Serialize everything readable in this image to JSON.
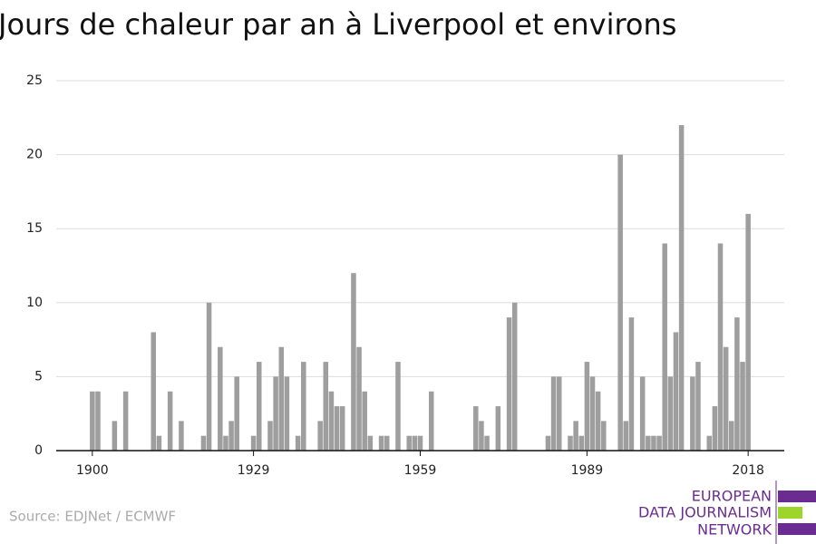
{
  "chart_data": {
    "type": "bar",
    "title": "Jours de chaleur par an à Liverpool et environs",
    "source": "Source: EDJNet / ECMWF",
    "logo": [
      "EUROPEAN",
      "DATA JOURNALISM",
      "NETWORK"
    ],
    "color": "#9e9e9e",
    "x": [
      1900,
      1901,
      1902,
      1903,
      1904,
      1905,
      1906,
      1907,
      1908,
      1909,
      1910,
      1911,
      1912,
      1913,
      1914,
      1915,
      1916,
      1917,
      1918,
      1919,
      1920,
      1921,
      1922,
      1923,
      1924,
      1925,
      1926,
      1927,
      1928,
      1929,
      1930,
      1931,
      1932,
      1933,
      1934,
      1935,
      1936,
      1937,
      1938,
      1939,
      1940,
      1941,
      1942,
      1943,
      1944,
      1945,
      1946,
      1947,
      1948,
      1949,
      1950,
      1951,
      1952,
      1953,
      1954,
      1955,
      1956,
      1957,
      1958,
      1959,
      1960,
      1961,
      1962,
      1963,
      1964,
      1965,
      1966,
      1967,
      1968,
      1969,
      1970,
      1971,
      1972,
      1973,
      1974,
      1975,
      1976,
      1977,
      1978,
      1979,
      1980,
      1981,
      1982,
      1983,
      1984,
      1985,
      1986,
      1987,
      1988,
      1989,
      1990,
      1991,
      1992,
      1993,
      1994,
      1995,
      1996,
      1997,
      1998,
      1999,
      2000,
      2001,
      2002,
      2003,
      2004,
      2005,
      2006,
      2007,
      2008,
      2009,
      2010,
      2011,
      2012,
      2013,
      2014,
      2015,
      2016,
      2017,
      2018
    ],
    "values": [
      4,
      4,
      0,
      0,
      2,
      0,
      4,
      0,
      0,
      0,
      0,
      8,
      1,
      0,
      4,
      0,
      2,
      0,
      0,
      0,
      1,
      10,
      0,
      7,
      1,
      2,
      5,
      0,
      0,
      1,
      6,
      0,
      2,
      5,
      7,
      5,
      0,
      1,
      6,
      0,
      0,
      2,
      6,
      4,
      3,
      3,
      0,
      12,
      7,
      4,
      1,
      0,
      1,
      1,
      0,
      6,
      0,
      1,
      1,
      1,
      0,
      4,
      0,
      0,
      0,
      0,
      0,
      0,
      0,
      3,
      2,
      1,
      0,
      3,
      0,
      9,
      10,
      0,
      0,
      0,
      0,
      0,
      1,
      5,
      5,
      0,
      1,
      2,
      1,
      6,
      5,
      4,
      2,
      0,
      0,
      20,
      2,
      9,
      0,
      5,
      1,
      1,
      1,
      14,
      5,
      8,
      22,
      0,
      5,
      6,
      0,
      1,
      3,
      14,
      7,
      2,
      9,
      6,
      16
    ],
    "xlim": [
      1893.5,
      2024.5
    ],
    "xticks": [
      1900,
      1929,
      1959,
      1989,
      2018
    ],
    "ylim": [
      0,
      25
    ],
    "yticks": [
      0,
      5,
      10,
      15,
      20,
      25
    ],
    "grid": true
  }
}
